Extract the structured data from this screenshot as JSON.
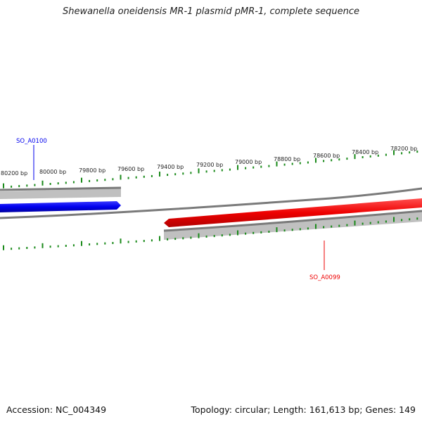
{
  "title": "Shewanella oneidensis MR-1 plasmid pMR-1, complete sequence",
  "footer": {
    "accession": "Accession: NC_004349",
    "stats": "Topology: circular; Length: 161,613 bp; Genes: 149"
  },
  "ruler": {
    "unit": "bp",
    "tick_labels": [
      "80200 bp",
      "80000 bp",
      "79800 bp",
      "79600 bp",
      "79400 bp",
      "79200 bp",
      "79000 bp",
      "78800 bp",
      "78600 bp",
      "78400 bp",
      "78200 bp"
    ]
  },
  "genes": [
    {
      "name": "SO_A0100",
      "strand": "forward",
      "color": "#0000ee"
    },
    {
      "name": "SO_A0099",
      "strand": "reverse",
      "color": "#ee0000"
    }
  ],
  "colors": {
    "tick": "#1a8a1a",
    "backbone": "#808080",
    "gene_shadow": "#c0c0c0"
  }
}
